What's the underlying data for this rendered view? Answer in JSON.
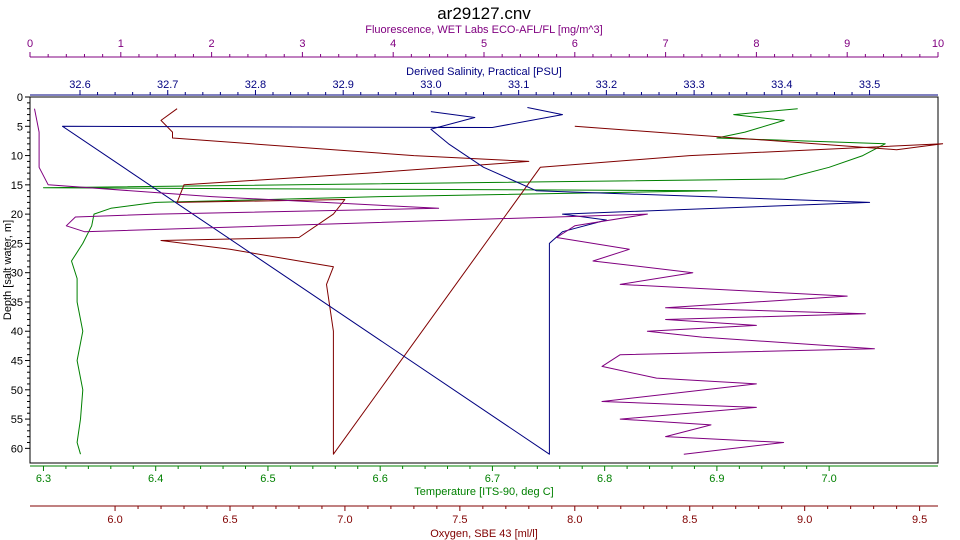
{
  "chart_data": {
    "type": "line",
    "title": "ar29127.cnv",
    "grid": false,
    "y_axis": {
      "label": "Depth [salt water, m]",
      "range": [
        0,
        62.5
      ],
      "inverted": true,
      "ticks": [
        0,
        5,
        10,
        15,
        20,
        25,
        30,
        35,
        40,
        45,
        50,
        55,
        60
      ],
      "color": "#000000"
    },
    "axes": {
      "fluorescence": {
        "label": "Fluorescence, WET Labs ECO-AFL/FL [mg/m^3]",
        "position": "top-outer",
        "range": [
          0,
          10
        ],
        "ticks": [
          0,
          1,
          2,
          3,
          4,
          5,
          6,
          7,
          8,
          9,
          10
        ],
        "color": "#800080"
      },
      "salinity": {
        "label": "Derived Salinity, Practical [PSU]",
        "position": "top-inner",
        "range": [
          32.543,
          33.578
        ],
        "ticks": [
          32.6,
          32.7,
          32.8,
          32.9,
          33.0,
          33.1,
          33.2,
          33.3,
          33.4,
          33.5
        ],
        "tick_labels": [
          "32.6",
          "32.7",
          "32.8",
          "32.9",
          "33.0",
          "33.1",
          "33.2",
          "33.3",
          "33.4",
          "33.5"
        ],
        "color": "#000080"
      },
      "temperature": {
        "label": "Temperature [ITS-90, deg C]",
        "position": "bottom-inner",
        "range": [
          6.288,
          7.097
        ],
        "ticks": [
          6.3,
          6.4,
          6.5,
          6.6,
          6.7,
          6.8,
          6.9,
          7.0
        ],
        "tick_labels": [
          "6.3",
          "6.4",
          "6.5",
          "6.6",
          "6.7",
          "6.8",
          "6.9",
          "7.0"
        ],
        "color": "#008000"
      },
      "oxygen": {
        "label": "Oxygen, SBE 43 [ml/l]",
        "position": "bottom-outer",
        "range": [
          5.63,
          9.58
        ],
        "ticks": [
          6.0,
          6.5,
          7.0,
          7.5,
          8.0,
          8.5,
          9.0,
          9.5
        ],
        "tick_labels": [
          "6.0",
          "6.5",
          "7.0",
          "7.5",
          "8.0",
          "8.5",
          "9.0",
          "9.5"
        ],
        "color": "#800000"
      }
    },
    "series": [
      {
        "axis": "temperature",
        "color": "#008000",
        "points": [
          [
            6.972,
            2
          ],
          [
            6.915,
            3
          ],
          [
            6.96,
            4
          ],
          [
            6.925,
            6
          ],
          [
            6.9,
            7
          ],
          [
            7.05,
            8
          ],
          [
            7.03,
            10
          ],
          [
            7.0,
            12
          ],
          [
            6.96,
            14
          ],
          [
            6.3,
            15.5
          ],
          [
            6.9,
            16
          ],
          [
            6.6,
            17
          ],
          [
            6.4,
            18
          ],
          [
            6.36,
            19
          ],
          [
            6.345,
            20
          ],
          [
            6.343,
            22
          ],
          [
            6.335,
            25
          ],
          [
            6.325,
            28
          ],
          [
            6.33,
            31
          ],
          [
            6.33,
            35
          ],
          [
            6.335,
            40
          ],
          [
            6.33,
            45
          ],
          [
            6.335,
            50
          ],
          [
            6.333,
            55
          ],
          [
            6.33,
            59
          ],
          [
            6.333,
            61
          ]
        ]
      },
      {
        "axis": "oxygen",
        "color": "#800000",
        "points": [
          [
            6.27,
            2
          ],
          [
            6.2,
            4
          ],
          [
            6.25,
            6
          ],
          [
            6.25,
            7
          ],
          [
            7.3,
            10
          ],
          [
            7.8,
            11
          ],
          [
            7.1,
            13
          ],
          [
            6.3,
            15
          ],
          [
            6.27,
            18
          ],
          [
            7.0,
            17.5
          ],
          [
            6.95,
            20
          ],
          [
            6.8,
            24
          ],
          [
            6.2,
            24.5
          ],
          [
            6.5,
            26
          ],
          [
            6.8,
            28
          ],
          [
            6.95,
            29
          ],
          [
            6.92,
            32
          ],
          [
            6.95,
            40
          ],
          [
            6.95,
            50
          ],
          [
            6.95,
            61
          ],
          [
            7.85,
            12
          ],
          [
            8.5,
            10
          ],
          [
            9.6,
            8
          ],
          [
            9.4,
            9
          ],
          [
            8.0,
            5
          ]
        ]
      },
      {
        "axis": "salinity",
        "color": "#000080",
        "points": [
          [
            33.0,
            2.5
          ],
          [
            33.05,
            3.5
          ],
          [
            33.0,
            5.5
          ],
          [
            33.02,
            8
          ],
          [
            33.06,
            12
          ],
          [
            33.09,
            14
          ],
          [
            33.12,
            16
          ],
          [
            33.5,
            18
          ],
          [
            33.15,
            20
          ],
          [
            33.2,
            21
          ],
          [
            33.15,
            23
          ],
          [
            33.135,
            25
          ],
          [
            33.135,
            35
          ],
          [
            33.135,
            45
          ],
          [
            33.135,
            55
          ],
          [
            33.135,
            61
          ],
          [
            32.58,
            5
          ],
          [
            33.07,
            5.2
          ],
          [
            33.15,
            3
          ],
          [
            33.11,
            1.8
          ]
        ]
      },
      {
        "axis": "fluorescence",
        "color": "#800080",
        "points": [
          [
            0.05,
            2
          ],
          [
            0.1,
            6
          ],
          [
            0.1,
            12
          ],
          [
            0.2,
            15
          ],
          [
            2.0,
            17
          ],
          [
            4.5,
            19
          ],
          [
            1.4,
            20
          ],
          [
            0.5,
            20.5
          ],
          [
            0.4,
            22
          ],
          [
            0.6,
            23
          ],
          [
            6.8,
            20
          ],
          [
            6.0,
            22
          ],
          [
            5.8,
            24
          ],
          [
            6.6,
            26
          ],
          [
            6.2,
            28
          ],
          [
            7.3,
            30
          ],
          [
            6.5,
            32
          ],
          [
            9.0,
            34
          ],
          [
            7.0,
            36
          ],
          [
            9.2,
            37
          ],
          [
            7.0,
            38
          ],
          [
            8.0,
            39
          ],
          [
            6.8,
            40
          ],
          [
            7.4,
            41
          ],
          [
            9.3,
            43
          ],
          [
            6.5,
            44
          ],
          [
            6.3,
            46
          ],
          [
            6.9,
            48
          ],
          [
            8.0,
            49
          ],
          [
            6.3,
            52
          ],
          [
            8.0,
            53
          ],
          [
            6.5,
            55
          ],
          [
            7.5,
            56
          ],
          [
            7.0,
            58
          ],
          [
            8.3,
            59
          ],
          [
            7.2,
            61
          ]
        ]
      }
    ]
  }
}
